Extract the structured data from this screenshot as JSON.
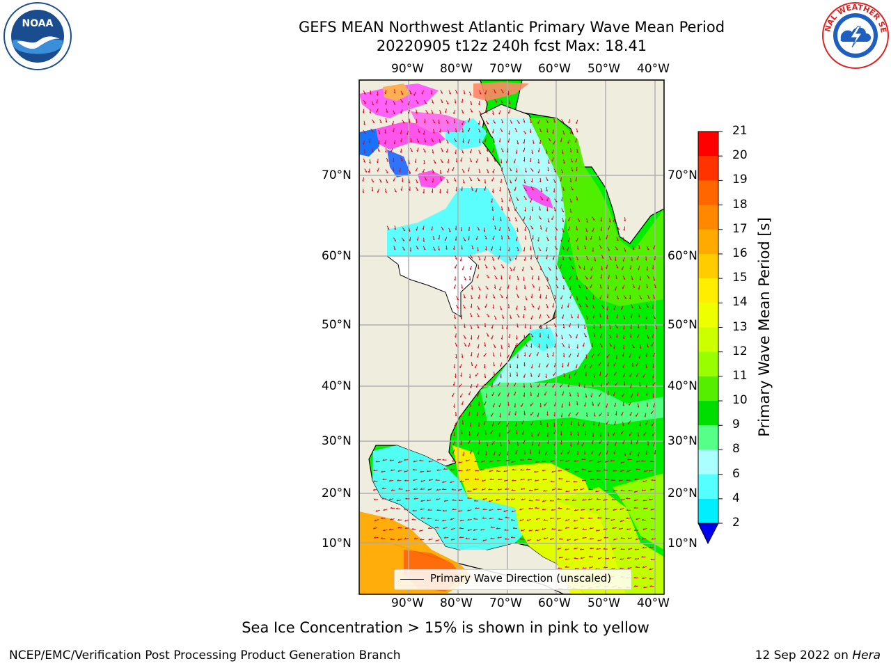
{
  "title_line1": "GEFS MEAN Northwest Atlantic Primary Wave Mean Period",
  "title_line2": "20220905 t12z 240h fcst   Max: 18.41",
  "caption": "Sea Ice Concentration > 15% is shown in pink to yellow",
  "footer_left": "NCEP/EMC/Verification Post Processing Product Generation Branch",
  "footer_date": "12 Sep 2022 on ",
  "footer_host": "Hera",
  "legend_label": "Primary Wave Direction (unscaled)",
  "logos": {
    "left": "NOAA",
    "right": "NATIONAL WEATHER SERVICE"
  },
  "map": {
    "lon_labels": [
      "90°W",
      "80°W",
      "70°W",
      "60°W",
      "50°W",
      "40°W"
    ],
    "lat_labels": [
      "70°N",
      "60°N",
      "50°N",
      "40°N",
      "30°N",
      "20°N",
      "10°N"
    ],
    "land_color": "#efedde",
    "arrow_color": "#e8001e",
    "grid_color": "#b0b0b0"
  },
  "colorbar": {
    "label": "Primary Wave Mean Period [s]",
    "ticks": [
      "21",
      "20",
      "19",
      "18",
      "17",
      "16",
      "15",
      "14",
      "13",
      "12",
      "11",
      "10",
      "9",
      "8",
      "6",
      "4",
      "2"
    ],
    "colors": [
      "#ff0000",
      "#ff3300",
      "#ff6600",
      "#ff8800",
      "#ffaa00",
      "#ffcc00",
      "#ffee00",
      "#eeff00",
      "#ccff00",
      "#99ff00",
      "#55ee00",
      "#00dd00",
      "#55ff88",
      "#aaffff",
      "#55ffff",
      "#00eeff",
      "#0099ff",
      "#0055ff"
    ],
    "extend_color": "#0000ee"
  }
}
